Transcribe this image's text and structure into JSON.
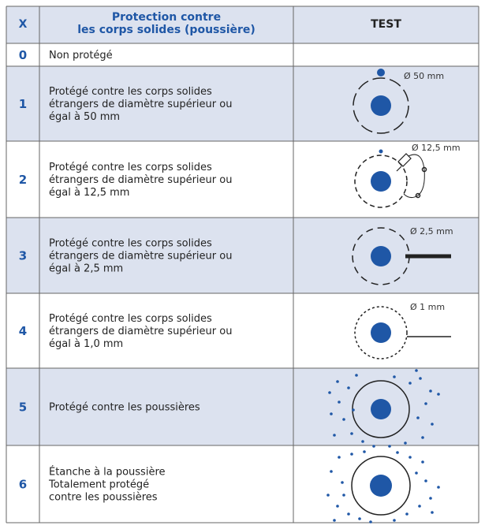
{
  "header": {
    "x": "X",
    "protection": [
      "Protection contre",
      "les corps solides (poussière)"
    ],
    "test": "TEST"
  },
  "rows": [
    {
      "code": "0",
      "description": [
        "Non protégé"
      ]
    },
    {
      "code": "1",
      "description": [
        "Protégé contre les corps solides",
        "étrangers de diamètre supérieur ou",
        "égal à 50 mm"
      ],
      "test_label": "Ø 50 mm"
    },
    {
      "code": "2",
      "description": [
        "Protégé contre les corps solides",
        "étrangers de diamètre supérieur ou",
        "égal à 12,5 mm"
      ],
      "test_label": "Ø 12,5 mm"
    },
    {
      "code": "3",
      "description": [
        "Protégé contre les corps solides",
        "étrangers de diamètre supérieur ou",
        "égal à 2,5 mm"
      ],
      "test_label": "Ø 2,5 mm"
    },
    {
      "code": "4",
      "description": [
        "Protégé contre les corps solides",
        "étrangers de diamètre supérieur ou",
        "égal à 1,0 mm"
      ],
      "test_label": "Ø 1 mm"
    },
    {
      "code": "5",
      "description": [
        "Protégé contre les poussières"
      ]
    },
    {
      "code": "6",
      "description": [
        "Étanche à la poussière",
        "Totalement protégé",
        "contre les poussières"
      ]
    }
  ]
}
